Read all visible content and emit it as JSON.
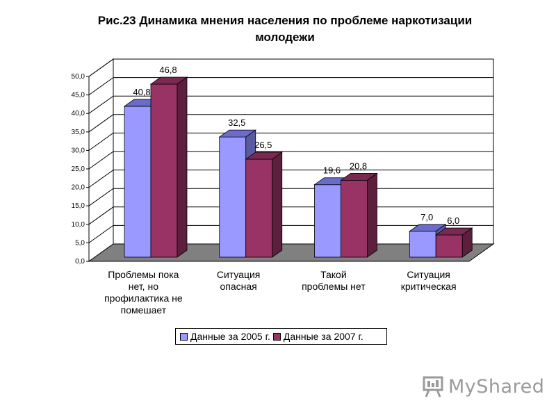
{
  "chart_data": {
    "type": "bar",
    "title_lines": [
      "Рис.23   Динамика мнения населения по проблеме наркотизации",
      "молодежи"
    ],
    "categories": [
      [
        "Проблемы пока",
        "нет, но",
        "профилактика не",
        "помешает"
      ],
      [
        "Ситуация",
        "опасная"
      ],
      [
        "Такой",
        "проблемы нет"
      ],
      [
        "Ситуация",
        "критическая"
      ]
    ],
    "series": [
      {
        "name": "Данные за 2005 г.",
        "values": [
          40.8,
          32.5,
          19.6,
          7.0
        ],
        "labels": [
          "40,8",
          "32,5",
          "19,6",
          "7,0"
        ],
        "color": "#9999ff",
        "top": "#6b6bcc",
        "side": "#5a5aa0"
      },
      {
        "name": "Данные за 2007 г.",
        "values": [
          46.8,
          26.5,
          20.8,
          6.0
        ],
        "labels": [
          "46,8",
          "26,5",
          "20,8",
          "6,0"
        ],
        "color": "#993366",
        "top": "#7a2952",
        "side": "#5c1f3d"
      }
    ],
    "ylim": [
      0,
      50
    ],
    "yticks": [
      "0,0",
      "5,0",
      "10,0",
      "15,0",
      "20,0",
      "25,0",
      "30,0",
      "35,0",
      "40,0",
      "45,0",
      "50,0"
    ],
    "grid": true,
    "legend_position": "bottom"
  },
  "watermark": {
    "text": "MyShared",
    "icon": "presentation-board-icon"
  }
}
